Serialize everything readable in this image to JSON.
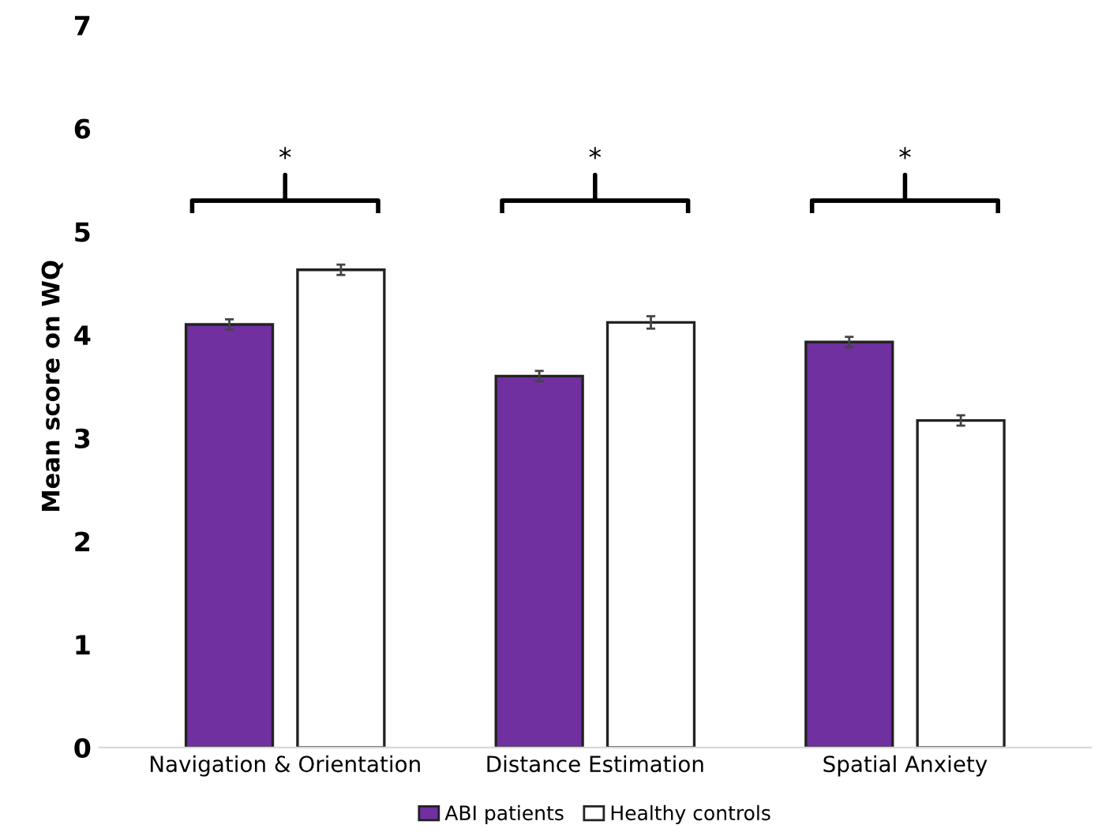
{
  "chart_data": {
    "type": "bar",
    "ylabel": "Mean score on WQ",
    "categories": [
      "Navigation & Orientation",
      "Distance Estimation",
      "Spatial Anxiety"
    ],
    "series": [
      {
        "name": "ABI patients",
        "color": "#7030a0",
        "values": [
          4.1,
          3.6,
          3.93
        ],
        "errors": [
          0.05,
          0.05,
          0.05
        ]
      },
      {
        "name": "Healthy controls",
        "color": "#ffffff",
        "values": [
          4.63,
          4.12,
          3.17
        ],
        "errors": [
          0.05,
          0.06,
          0.05
        ]
      }
    ],
    "ylim": [
      0,
      7
    ],
    "yticks": [
      0,
      1,
      2,
      3,
      4,
      5,
      6,
      7
    ],
    "grid": false,
    "legend": "bottom",
    "annotations": [
      "*",
      "*",
      "*"
    ]
  }
}
